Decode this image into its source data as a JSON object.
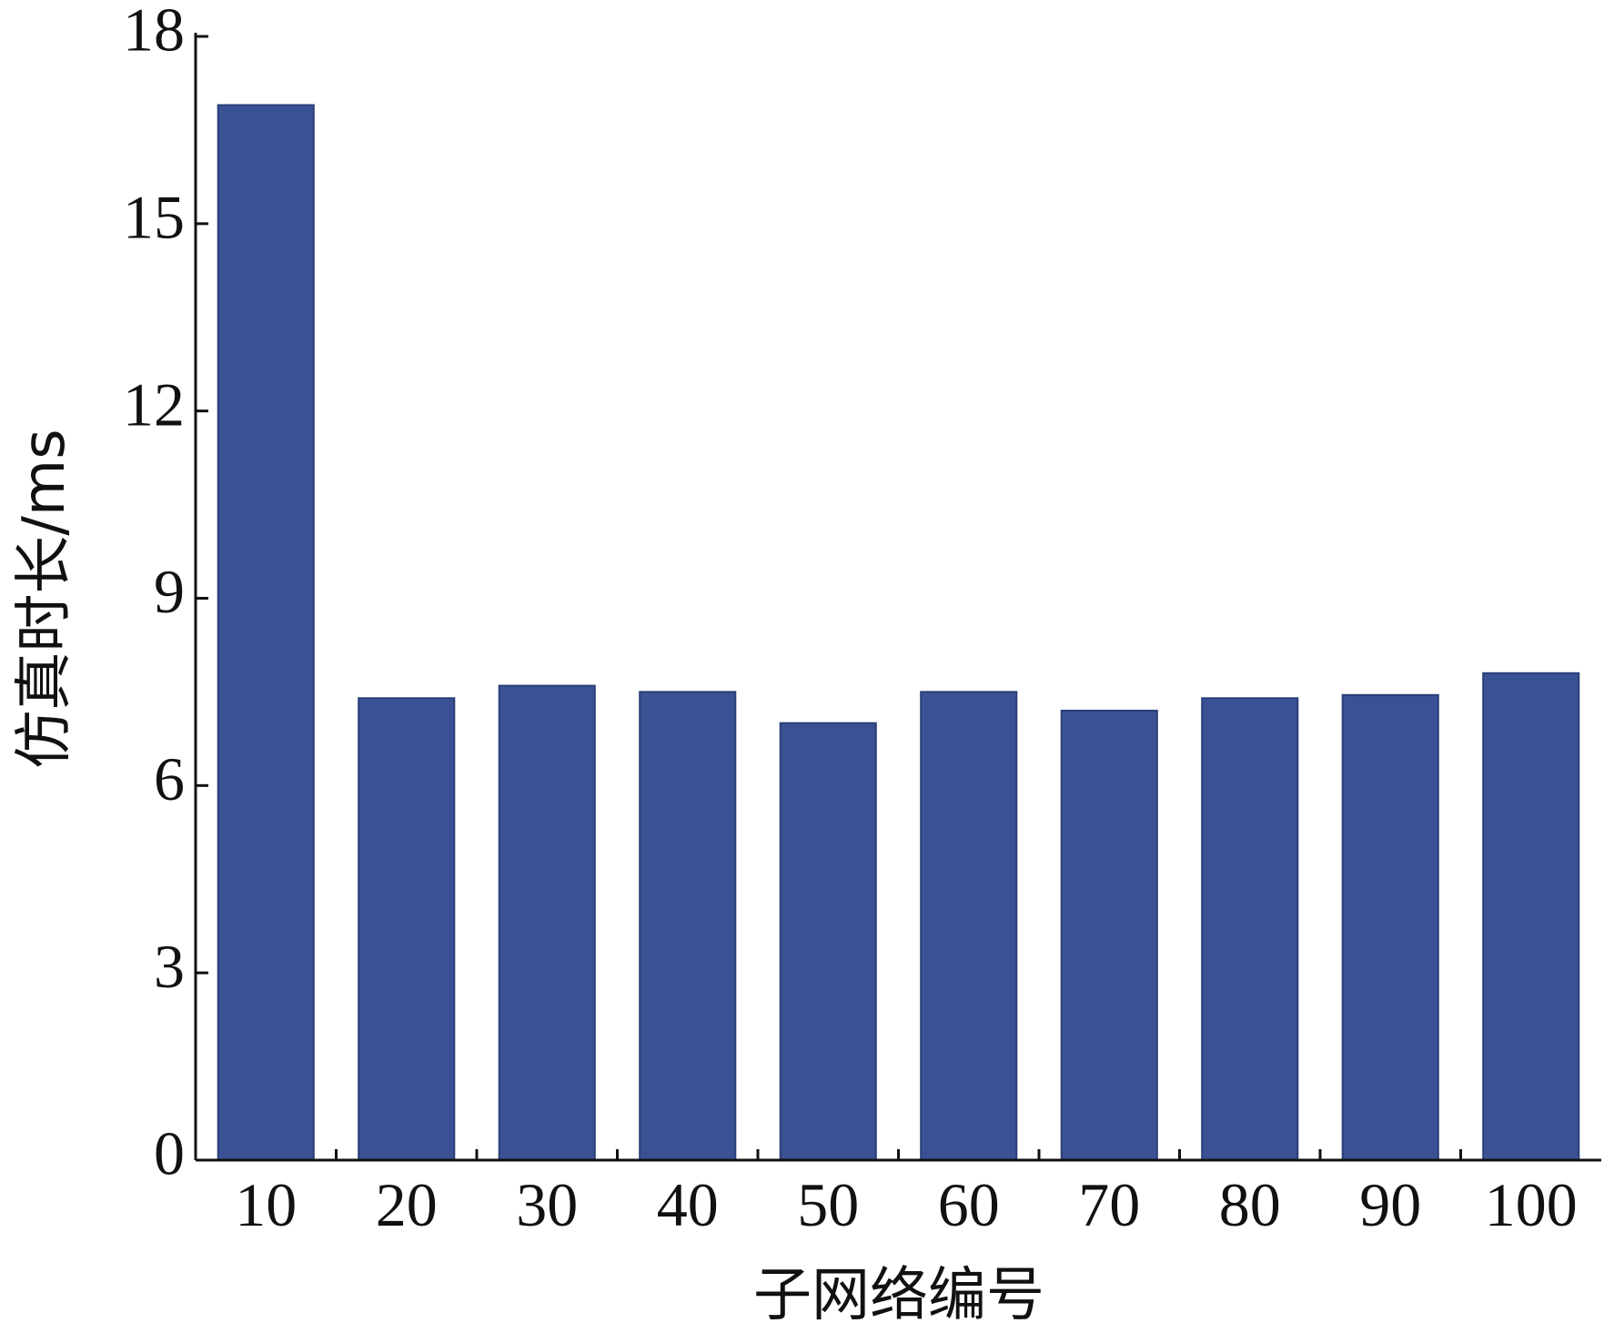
{
  "chart_data": {
    "type": "bar",
    "xlabel": "子网络编号",
    "ylabel": "仿真时长/ms",
    "categories": [
      "10",
      "20",
      "30",
      "40",
      "50",
      "60",
      "70",
      "80",
      "90",
      "100"
    ],
    "values": [
      16.9,
      7.4,
      7.6,
      7.5,
      7.0,
      7.5,
      7.2,
      7.4,
      7.45,
      7.8
    ],
    "ylim": [
      0,
      18
    ],
    "yticks": [
      0,
      3,
      6,
      9,
      12,
      15,
      18
    ],
    "grid": false,
    "legend": "none",
    "bar_color": "#3a5293"
  }
}
